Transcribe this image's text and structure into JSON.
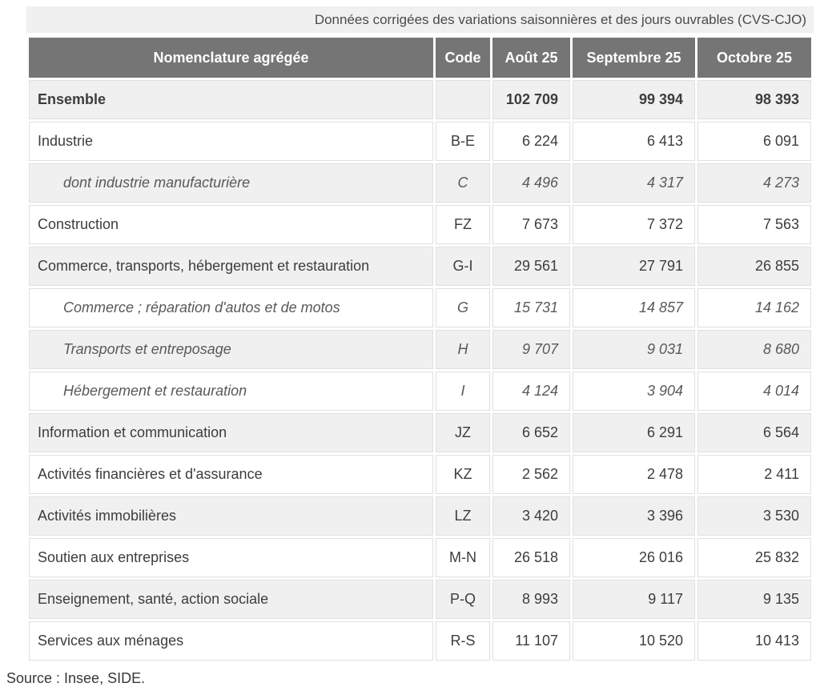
{
  "caption": "Données corrigées des variations saisonnières et des jours ouvrables (CVS-CJO)",
  "source": "Source : Insee, SIDE.",
  "table": {
    "headers": [
      "Nomenclature agrégée",
      "Code",
      "Août 25",
      "Septembre 25",
      "Octobre 25"
    ],
    "rows": [
      {
        "label": "Ensemble",
        "code": "",
        "values": [
          "102 709",
          "99 394",
          "98 393"
        ],
        "style": "total"
      },
      {
        "label": "Industrie",
        "code": "B-E",
        "values": [
          "6 224",
          "6 413",
          "6 091"
        ],
        "style": "normal"
      },
      {
        "label": "dont industrie manufacturière",
        "code": "C",
        "values": [
          "4 496",
          "4 317",
          "4 273"
        ],
        "style": "sub"
      },
      {
        "label": "Construction",
        "code": "FZ",
        "values": [
          "7 673",
          "7 372",
          "7 563"
        ],
        "style": "normal"
      },
      {
        "label": "Commerce, transports, hébergement et restauration",
        "code": "G-I",
        "values": [
          "29 561",
          "27 791",
          "26 855"
        ],
        "style": "normal"
      },
      {
        "label": "Commerce ; réparation d'autos et de motos",
        "code": "G",
        "values": [
          "15 731",
          "14 857",
          "14 162"
        ],
        "style": "sub"
      },
      {
        "label": "Transports et entreposage",
        "code": "H",
        "values": [
          "9 707",
          "9 031",
          "8 680"
        ],
        "style": "sub"
      },
      {
        "label": "Hébergement et restauration",
        "code": "I",
        "values": [
          "4 124",
          "3 904",
          "4 014"
        ],
        "style": "sub"
      },
      {
        "label": "Information et communication",
        "code": "JZ",
        "values": [
          "6 652",
          "6 291",
          "6 564"
        ],
        "style": "normal"
      },
      {
        "label": "Activités financières et d'assurance",
        "code": "KZ",
        "values": [
          "2 562",
          "2 478",
          "2 411"
        ],
        "style": "normal"
      },
      {
        "label": "Activités immobilières",
        "code": "LZ",
        "values": [
          "3 420",
          "3 396",
          "3 530"
        ],
        "style": "normal"
      },
      {
        "label": "Soutien aux entreprises",
        "code": "M-N",
        "values": [
          "26 518",
          "26 016",
          "25 832"
        ],
        "style": "normal"
      },
      {
        "label": "Enseignement, santé, action sociale",
        "code": "P-Q",
        "values": [
          "8 993",
          "9 117",
          "9 135"
        ],
        "style": "normal"
      },
      {
        "label": "Services aux ménages",
        "code": "R-S",
        "values": [
          "11 107",
          "10 520",
          "10 413"
        ],
        "style": "normal"
      }
    ]
  },
  "colors": {
    "header_bg": "#757575",
    "header_text": "#ffffff",
    "band_bg": "#f0f0f0",
    "stripe_bg": "#f0f0f0",
    "cell_border": "#e0e0e0",
    "text": "#3d3d3d",
    "sub_text": "#595959",
    "caption_text": "#4a4a4a",
    "source_text": "#383838"
  }
}
